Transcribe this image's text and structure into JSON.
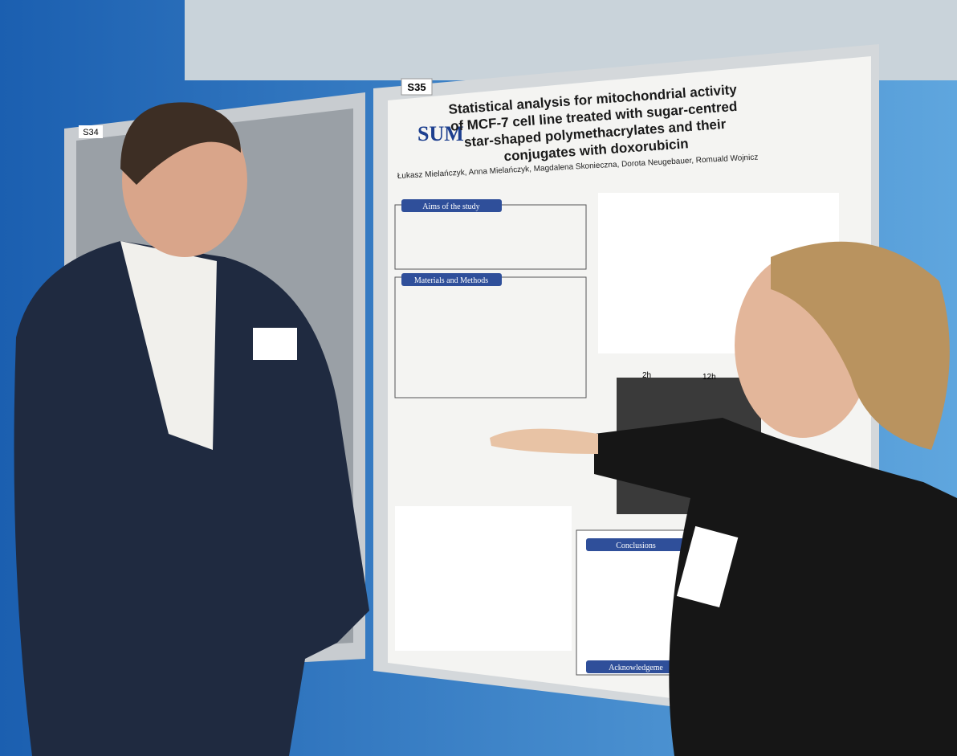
{
  "boards": [
    {
      "label": "S34"
    },
    {
      "label": "S35"
    }
  ],
  "poster": {
    "logo": "SUM",
    "title_lines": [
      "Statistical analysis for mitochondrial activity",
      "of MCF-7 cell line treated with sugar-centred",
      "star-shaped polymethacrylates and their",
      "conjugates with doxorubicin"
    ],
    "authors": "Łukasz Mielańczyk, Anna Mielańczyk, Magdalena Skonieczna, Dorota Neugebauer, Romuald Wojnicz",
    "sections": [
      "Aims of the study",
      "Materials and Methods",
      "Conclusions",
      "Acknowledgeme"
    ],
    "time_points": [
      "2h",
      "12h"
    ]
  }
}
